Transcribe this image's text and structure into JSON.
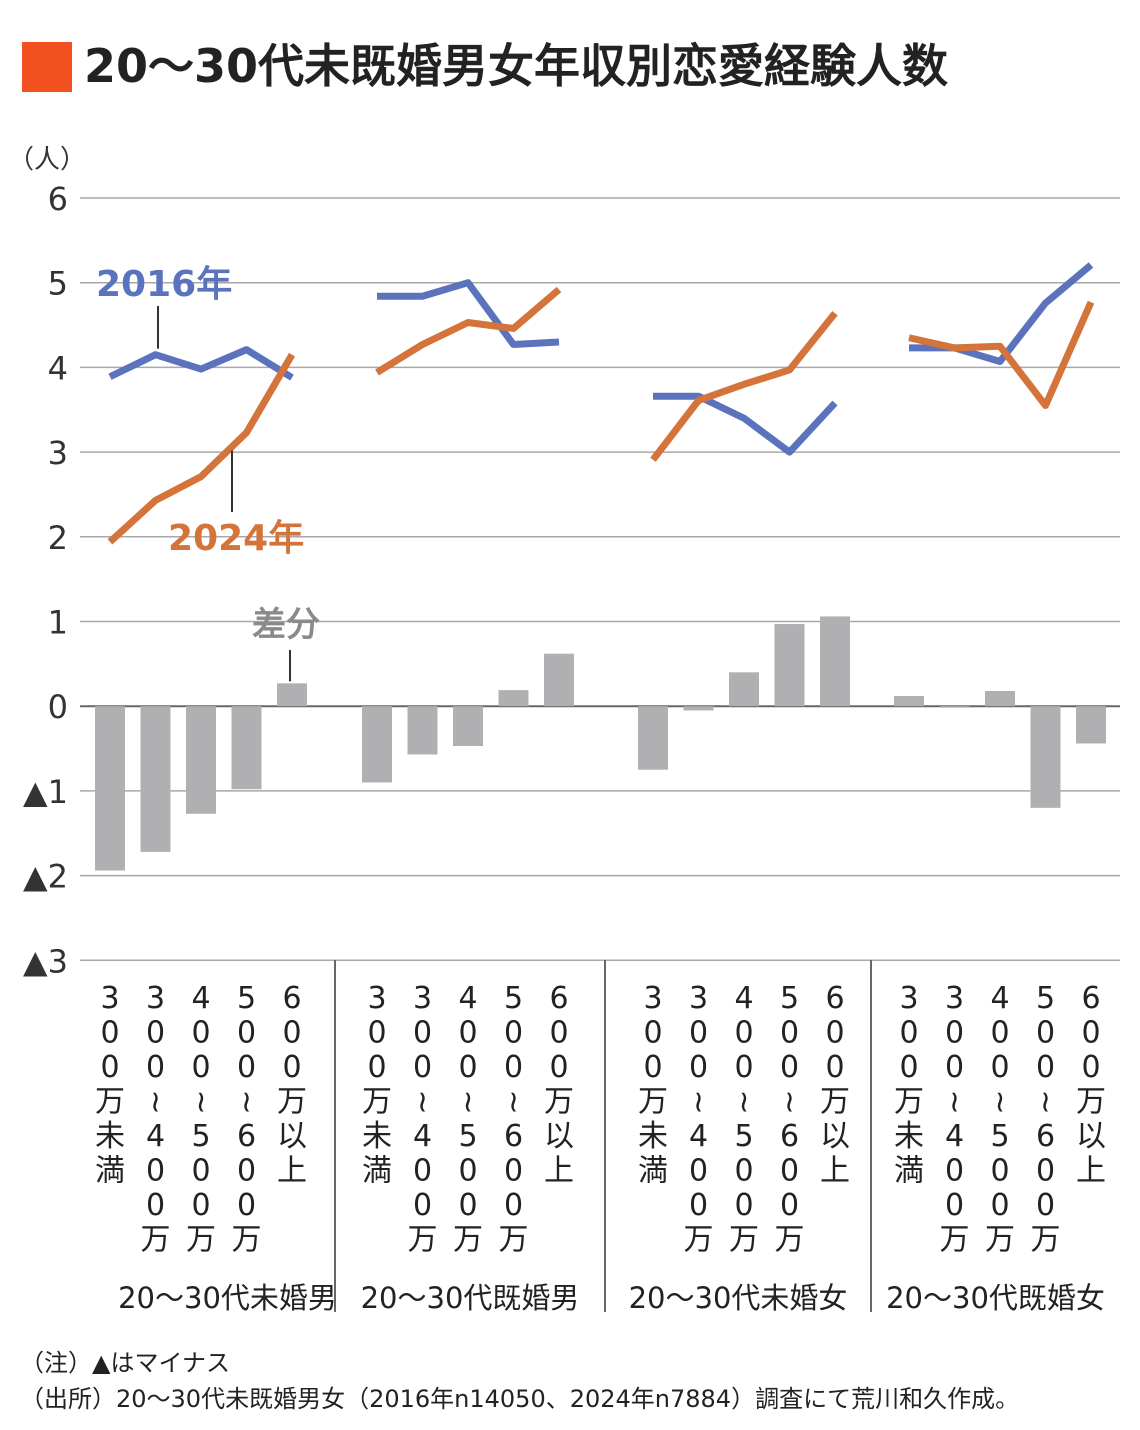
{
  "title": "20〜30代未既婚男女年収別恋愛経験人数",
  "colors": {
    "accent": "#f2501e",
    "series_2016": "#5b72bd",
    "series_2024": "#d4743a",
    "diff": "#b0b0b2",
    "grid": "#a8a8a8"
  },
  "chart_data": {
    "type": "line",
    "y_unit": "（人）",
    "ylim": [
      -3,
      6
    ],
    "y_ticks": [
      {
        "v": 6,
        "label": "6"
      },
      {
        "v": 5,
        "label": "5"
      },
      {
        "v": 4,
        "label": "4"
      },
      {
        "v": 3,
        "label": "3"
      },
      {
        "v": 2,
        "label": "2"
      },
      {
        "v": 1,
        "label": "1"
      },
      {
        "v": 0,
        "label": "0"
      },
      {
        "v": -1,
        "label": "▲1"
      },
      {
        "v": -2,
        "label": "▲2"
      },
      {
        "v": -3,
        "label": "▲3"
      }
    ],
    "categories": [
      "300万未満",
      "300〜400万",
      "400〜500万",
      "500〜600万",
      "600万以上"
    ],
    "groups": [
      {
        "name": "20〜30代未婚男",
        "series_2016": [
          3.89,
          4.15,
          3.98,
          4.21,
          3.88
        ],
        "series_2024": [
          1.94,
          2.43,
          2.71,
          3.23,
          4.15
        ],
        "diff": [
          -1.94,
          -1.72,
          -1.27,
          -0.98,
          0.27
        ]
      },
      {
        "name": "20〜30代既婚男",
        "series_2016": [
          4.84,
          4.84,
          5.0,
          4.27,
          4.3
        ],
        "series_2024": [
          3.94,
          4.27,
          4.53,
          4.46,
          4.92
        ],
        "diff": [
          -0.9,
          -0.57,
          -0.47,
          0.19,
          0.62
        ]
      },
      {
        "name": "20〜30代未婚女",
        "series_2016": [
          3.66,
          3.66,
          3.4,
          3.0,
          3.58
        ],
        "series_2024": [
          2.91,
          3.61,
          3.8,
          3.97,
          4.64
        ],
        "diff": [
          -0.75,
          -0.05,
          0.4,
          0.97,
          1.06
        ]
      },
      {
        "name": "20〜30代既婚女",
        "series_2016": [
          4.23,
          4.23,
          4.07,
          4.76,
          5.21
        ],
        "series_2024": [
          4.35,
          4.23,
          4.25,
          3.55,
          4.77
        ],
        "diff": [
          0.12,
          0.0,
          0.18,
          -1.2,
          -0.44
        ]
      }
    ],
    "series_labels": {
      "s2016": "2016年",
      "s2024": "2024年",
      "diff": "差分"
    },
    "grid": true
  },
  "notes": {
    "note": "（注）▲はマイナス",
    "source": "（出所）20〜30代未既婚男女（2016年n14050、2024年n7884）調査にて荒川和久作成。"
  }
}
